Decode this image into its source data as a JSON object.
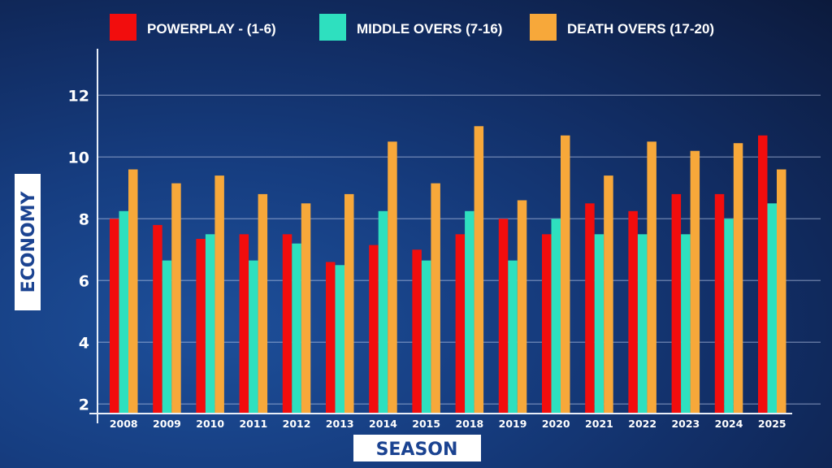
{
  "chart_data": {
    "type": "bar",
    "title": "",
    "xlabel": "SEASON",
    "ylabel": "ECONOMY",
    "ylim": [
      1.6,
      13.5
    ],
    "yticks": [
      "2",
      "4",
      "6",
      "8",
      "10",
      "12"
    ],
    "grid": true,
    "legend_position": "top",
    "categories": [
      "2008",
      "2009",
      "2010",
      "2011",
      "2012",
      "2013",
      "2014",
      "2015",
      "2018",
      "2019",
      "2020",
      "2021",
      "2022",
      "2023",
      "2024",
      "2025"
    ],
    "series": [
      {
        "name": "POWERPLAY - (1-6)",
        "color": "#f20d0d",
        "values": [
          8.0,
          7.8,
          7.35,
          7.5,
          7.5,
          6.6,
          7.15,
          7.0,
          7.5,
          8.0,
          7.5,
          8.5,
          8.25,
          8.8,
          8.8,
          10.7
        ]
      },
      {
        "name": "MIDDLE OVERS (7-16)",
        "color": "#2ee0bf",
        "values": [
          8.25,
          6.65,
          7.5,
          6.65,
          7.2,
          6.5,
          8.25,
          6.65,
          8.25,
          6.65,
          8.0,
          7.5,
          7.5,
          7.5,
          8.0,
          8.5
        ]
      },
      {
        "name": "DEATH OVERS (17-20)",
        "color": "#f7a83a",
        "values": [
          9.6,
          9.15,
          9.4,
          8.8,
          8.5,
          8.8,
          10.5,
          9.15,
          11.0,
          8.6,
          10.7,
          9.4,
          10.5,
          10.2,
          10.45,
          9.6
        ]
      }
    ]
  }
}
